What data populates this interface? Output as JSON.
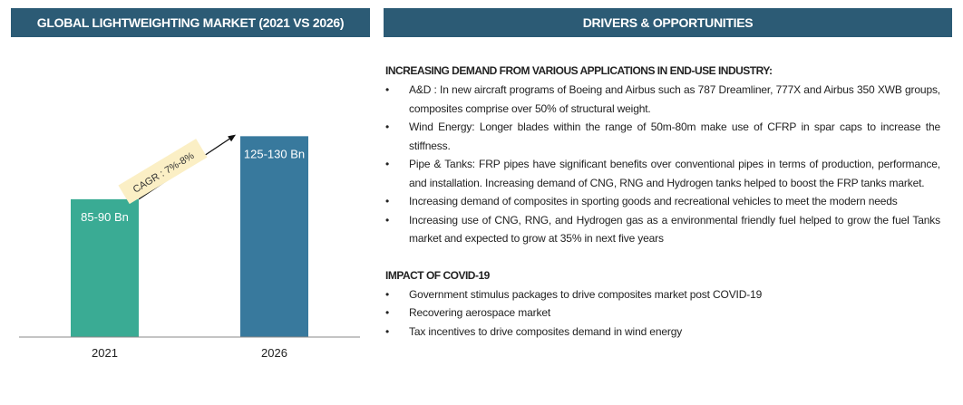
{
  "left_panel": {
    "title": "GLOBAL LIGHTWEIGHTING MARKET (2021 VS 2026)"
  },
  "right_panel": {
    "title": "DRIVERS & OPPORTUNITIES",
    "sections": [
      {
        "heading": "INCREASING DEMAND FROM VARIOUS APPLICATIONS IN END-USE INDUSTRY:",
        "items": [
          "A&D : In new aircraft programs of Boeing and Airbus such as 787 Dreamliner, 777X and Airbus 350 XWB groups, composites comprise over 50% of structural weight.",
          "Wind Energy: Longer blades within the range of 50m-80m make use of CFRP in spar caps to increase the stiffness.",
          "Pipe & Tanks: FRP pipes have significant benefits over conventional pipes in terms of production, performance, and installation. Increasing demand of CNG, RNG and Hydrogen tanks helped to boost the FRP tanks market.",
          "Increasing demand of composites in sporting goods and recreational vehicles to meet the modern needs",
          "Increasing use of CNG, RNG, and Hydrogen gas as a environmental friendly fuel helped to grow the fuel Tanks market and expected to grow at 35% in next five years"
        ]
      },
      {
        "heading": "IMPACT OF COVID-19",
        "items": [
          "Government stimulus packages to drive composites market post COVID-19",
          "Recovering aerospace market",
          "Tax incentives to drive composites demand in wind energy"
        ]
      }
    ]
  },
  "chart_data": {
    "type": "bar",
    "title": "GLOBAL LIGHTWEIGHTING MARKET (2021 VS 2026)",
    "categories": [
      "2021",
      "2026"
    ],
    "ranges": [
      [
        85,
        90
      ],
      [
        125,
        130
      ]
    ],
    "data_labels": [
      "85-90 Bn",
      "125-130 Bn"
    ],
    "colors": [
      "#3aab94",
      "#38799d"
    ],
    "annotation": "CAGR : 7%-8%",
    "ylim": [
      0,
      130
    ],
    "grid": false
  },
  "colors": {
    "header": "#2c5b75",
    "cagr_box": "#fbefc5"
  }
}
